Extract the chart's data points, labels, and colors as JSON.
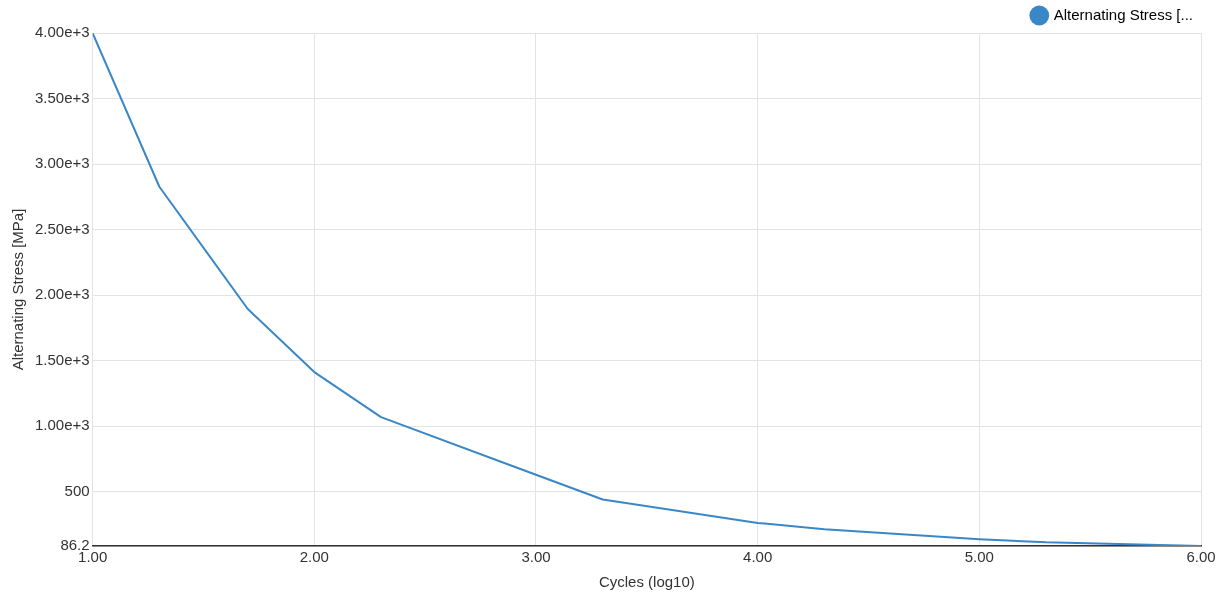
{
  "chart_data": {
    "type": "line",
    "xlabel": "Cycles (log10)",
    "ylabel": "Alternating Stress [MPa]",
    "x": [
      1,
      1.301,
      1.699,
      2,
      2.301,
      3.301,
      4,
      4.301,
      5,
      5.301,
      6
    ],
    "series": [
      {
        "name": "Alternating Stress [...",
        "color": "#3a87c8",
        "values": [
          3999,
          2827,
          1896,
          1413,
          1069,
          441,
          262,
          214,
          138,
          114,
          86.2
        ]
      }
    ],
    "xlim": [
      1,
      6
    ],
    "xticks": [
      {
        "value": 1,
        "label": "1.00"
      },
      {
        "value": 2,
        "label": "2.00"
      },
      {
        "value": 3,
        "label": "3.00"
      },
      {
        "value": 4,
        "label": "4.00"
      },
      {
        "value": 5,
        "label": "5.00"
      },
      {
        "value": 6,
        "label": "6.00"
      }
    ],
    "ylim": [
      86.2,
      4000
    ],
    "yticks": [
      86.2,
      500,
      {
        "value": 1000,
        "label": "1.00e+3"
      },
      {
        "value": 1500,
        "label": "1.50e+3"
      },
      {
        "value": 2000,
        "label": "2.00e+3"
      },
      {
        "value": 2500,
        "label": "2.50e+3"
      },
      {
        "value": 3000,
        "label": "3.00e+3"
      },
      {
        "value": 3500,
        "label": "3.50e+3"
      },
      {
        "value": 4000,
        "label": "4.00e+3"
      }
    ],
    "grid": true,
    "legend": "top right",
    "marker": "none",
    "line_style": "solid"
  }
}
